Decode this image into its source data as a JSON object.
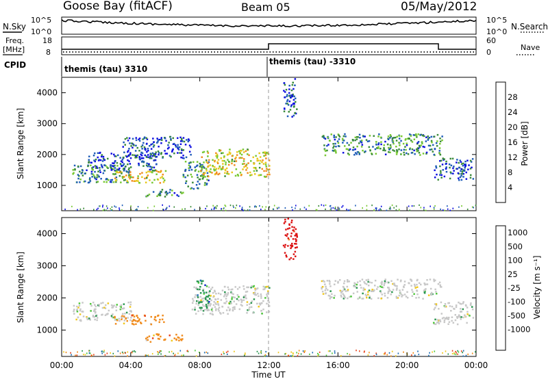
{
  "header": {
    "station": "Goose Bay (fitACF)",
    "beam": "Beam 05",
    "date": "05/May/2012"
  },
  "noise_panel": {
    "left_label": "N.Sky",
    "right_label": "N.Search",
    "ticks_left": [
      "10^5",
      "10^0"
    ],
    "ticks_right": [
      "10^5",
      "10^0"
    ],
    "right_line_style": "dotted"
  },
  "freq_panel": {
    "left_label_line1": "Freq.",
    "left_label_line2": "[MHz]",
    "right_label": "Nave",
    "ticks_left": [
      "18",
      "8"
    ],
    "ticks_right": [
      "60",
      "0"
    ],
    "right_line_style": "dotted"
  },
  "cpid_panel": {
    "label": "CPID",
    "segments": [
      {
        "label": "themis (tau) 3310",
        "start_hour": 0,
        "end_hour": 12
      },
      {
        "label": "themis (tau) -3310",
        "start_hour": 12,
        "end_hour": 24
      }
    ]
  },
  "chart_data": [
    {
      "type": "heatmap",
      "panel": "power",
      "ylabel": "Slant Range [km]",
      "yticks": [
        "1000",
        "2000",
        "3000",
        "4000"
      ],
      "ylim": [
        180,
        4500
      ],
      "xlim_hours": [
        0,
        24
      ],
      "xticks": [
        "00:00",
        "04:00",
        "08:00",
        "12:00",
        "16:00",
        "20:00",
        "00:00"
      ],
      "colorbar": {
        "label": "Power [dB]",
        "ticks": [
          "4",
          "8",
          "12",
          "16",
          "20",
          "24",
          "28"
        ],
        "colors": [
          "#1010e0",
          "#1e5cb8",
          "#3a8a3a",
          "#78c832",
          "#e8c81e",
          "#f08c1e",
          "#e8401e",
          "#d81010"
        ]
      },
      "regions": [
        {
          "from_hour": 0.6,
          "to_hour": 4.0,
          "range_km": [
            1100,
            1700
          ],
          "level": 2
        },
        {
          "from_hour": 1.5,
          "to_hour": 5.5,
          "range_km": [
            1500,
            2100
          ],
          "level": 1
        },
        {
          "from_hour": 3.0,
          "to_hour": 6.0,
          "range_km": [
            1100,
            1500
          ],
          "level": 4
        },
        {
          "from_hour": 3.5,
          "to_hour": 7.5,
          "range_km": [
            1900,
            2600
          ],
          "level": 1
        },
        {
          "from_hour": 4.8,
          "to_hour": 7.0,
          "range_km": [
            650,
            900
          ],
          "level": 2
        },
        {
          "from_hour": 7.0,
          "to_hour": 8.5,
          "range_km": [
            900,
            1800
          ],
          "level": 2
        },
        {
          "from_hour": 8.0,
          "to_hour": 12.0,
          "range_km": [
            1300,
            2200
          ],
          "level": 4
        },
        {
          "from_hour": 12.8,
          "to_hour": 13.6,
          "range_km": [
            3200,
            4500
          ],
          "level": 1
        },
        {
          "from_hour": 15.0,
          "to_hour": 22.0,
          "range_km": [
            2000,
            2700
          ],
          "level": 2
        },
        {
          "from_hour": 21.5,
          "to_hour": 23.8,
          "range_km": [
            1200,
            1900
          ],
          "level": 1
        }
      ]
    },
    {
      "type": "heatmap",
      "panel": "velocity",
      "ylabel": "Slant Range [km]",
      "yticks": [
        "1000",
        "2000",
        "3000",
        "4000"
      ],
      "ylim": [
        180,
        4500
      ],
      "xlim_hours": [
        0,
        24
      ],
      "xlabel": "Time UT",
      "xticks": [
        "00:00",
        "04:00",
        "08:00",
        "12:00",
        "16:00",
        "20:00",
        "00:00"
      ],
      "colorbar": {
        "label": "Velocity [m s⁻¹]",
        "ticks": [
          "1000",
          "500",
          "100",
          "25",
          "-25",
          "-100",
          "-500",
          "-1000"
        ],
        "colors": [
          "#1428c8",
          "#1e6eb4",
          "#2a9650",
          "#50c83c",
          "#c8c8c8",
          "#f0c81e",
          "#f08c1e",
          "#e8461e",
          "#dc1414"
        ]
      },
      "regions": [
        {
          "from_hour": 0.6,
          "to_hour": 4.0,
          "range_km": [
            1300,
            1900
          ],
          "class": "near-zero"
        },
        {
          "from_hour": 3.0,
          "to_hour": 6.0,
          "range_km": [
            1200,
            1500
          ],
          "class": "negative-small"
        },
        {
          "from_hour": 4.8,
          "to_hour": 7.0,
          "range_km": [
            650,
            900
          ],
          "class": "negative-small"
        },
        {
          "from_hour": 7.5,
          "to_hour": 12.0,
          "range_km": [
            1500,
            2400
          ],
          "class": "near-zero"
        },
        {
          "from_hour": 7.8,
          "to_hour": 8.6,
          "range_km": [
            1700,
            2600
          ],
          "class": "positive-small"
        },
        {
          "from_hour": 12.8,
          "to_hour": 13.6,
          "range_km": [
            3200,
            4500
          ],
          "class": "negative-large"
        },
        {
          "from_hour": 15.0,
          "to_hour": 22.0,
          "range_km": [
            2000,
            2600
          ],
          "class": "near-zero"
        },
        {
          "from_hour": 21.5,
          "to_hour": 23.8,
          "range_km": [
            1200,
            1900
          ],
          "class": "near-zero"
        }
      ]
    }
  ]
}
